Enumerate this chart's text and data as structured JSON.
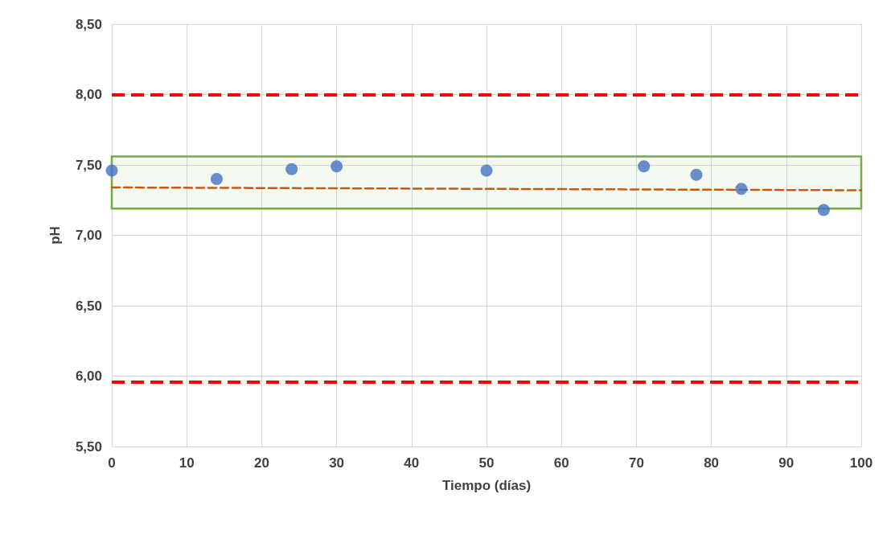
{
  "chart_data": {
    "type": "scatter",
    "xlabel": "Tiempo (días)",
    "ylabel": "pH",
    "x": [
      0,
      14,
      24,
      30,
      50,
      71,
      78,
      84,
      95
    ],
    "series": [
      {
        "color": "#4472c4",
        "marker": "circle",
        "values": [
          7.46,
          7.4,
          7.47,
          7.49,
          7.46,
          7.49,
          7.43,
          7.33,
          7.18
        ]
      },
      {
        "type": "line",
        "color": "#c55a11",
        "line_style": "dashed",
        "marker": "none",
        "x": [
          0,
          100
        ],
        "values": [
          7.34,
          7.32
        ]
      }
    ],
    "xlim": [
      0,
      100
    ],
    "xticks": [
      0,
      10,
      20,
      30,
      40,
      50,
      60,
      70,
      80,
      90,
      100
    ],
    "ylim": [
      5.5,
      8.5
    ],
    "yticks": [
      {
        "value": 5.5,
        "label": "5,50"
      },
      {
        "value": 6.0,
        "label": "6,00"
      },
      {
        "value": 6.5,
        "label": "6,50"
      },
      {
        "value": 7.0,
        "label": "7,00"
      },
      {
        "value": 7.5,
        "label": "7,50"
      },
      {
        "value": 8.0,
        "label": "8,00"
      },
      {
        "value": 8.5,
        "label": "8,50"
      }
    ],
    "ref_lines": [
      {
        "axis": "y",
        "value": 8.0,
        "color": "#ff0000",
        "line_style": "dashed"
      },
      {
        "axis": "y",
        "value": 5.96,
        "color": "#ff0000",
        "line_style": "dashed"
      }
    ],
    "bands": [
      {
        "axis": "y",
        "from": 7.19,
        "to": 7.56,
        "color": "#70ad47"
      }
    ],
    "grid": true
  }
}
